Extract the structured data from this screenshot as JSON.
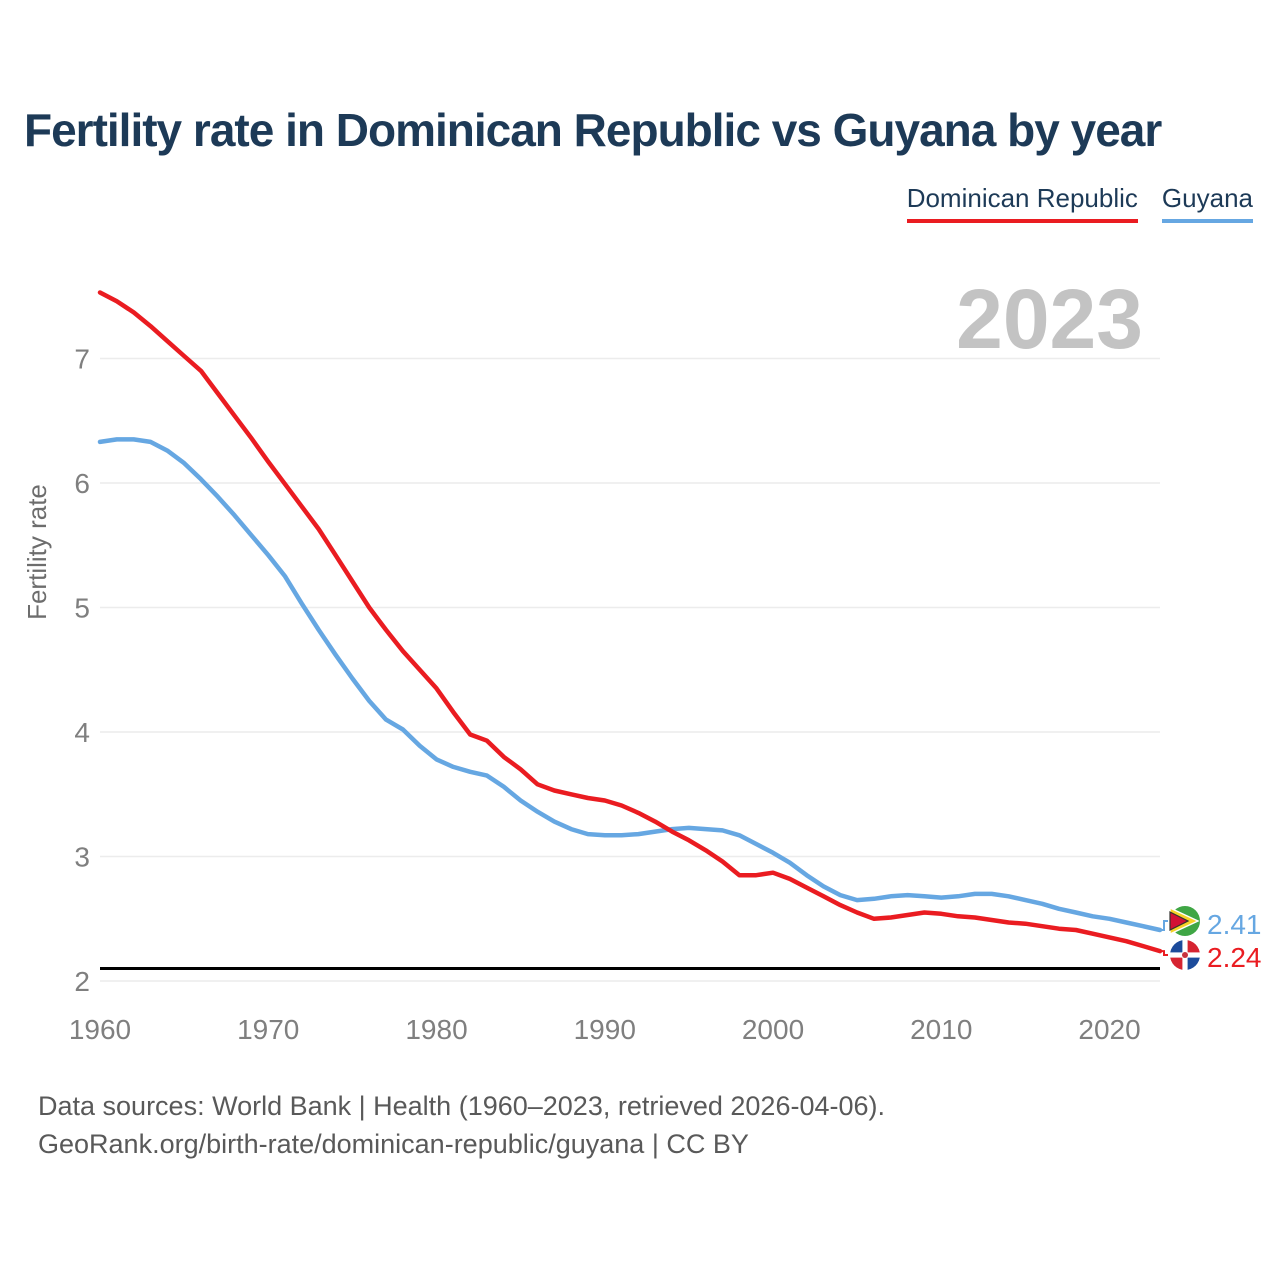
{
  "title": "Fertility rate in Dominican Republic vs Guyana by year",
  "watermark": "2023",
  "legend": [
    {
      "label": "Dominican Republic",
      "color": "#ea1c21"
    },
    {
      "label": "Guyana",
      "color": "#66a7e2"
    }
  ],
  "end_labels": [
    {
      "series": "Guyana",
      "value": "2.41",
      "color": "#66a7e2",
      "flag": "guyana-flag-icon"
    },
    {
      "series": "Dominican Republic",
      "value": "2.24",
      "color": "#ea1c21",
      "flag": "dominican-republic-flag-icon"
    }
  ],
  "footer": {
    "line1": "Data sources: World Bank | Health (1960–2023, retrieved 2026-04-06).",
    "line2": "GeoRank.org/birth-rate/dominican-republic/guyana | CC BY"
  },
  "chart_data": {
    "type": "line",
    "title": "Fertility rate in Dominican Republic vs Guyana by year",
    "xlabel": "",
    "ylabel": "Fertility rate",
    "grid": "horizontal",
    "legend_position": "top-right",
    "xlim": [
      1960,
      2023
    ],
    "ylim": [
      2,
      7.6
    ],
    "x_ticks": [
      1960,
      1970,
      1980,
      1990,
      2000,
      2010,
      2020
    ],
    "y_ticks": [
      2,
      3,
      4,
      5,
      6,
      7
    ],
    "reference_line": {
      "value": 2.1,
      "color": "#000000"
    },
    "x": [
      1960,
      1961,
      1962,
      1963,
      1964,
      1965,
      1966,
      1967,
      1968,
      1969,
      1970,
      1971,
      1972,
      1973,
      1974,
      1975,
      1976,
      1977,
      1978,
      1979,
      1980,
      1981,
      1982,
      1983,
      1984,
      1985,
      1986,
      1987,
      1988,
      1989,
      1990,
      1991,
      1992,
      1993,
      1994,
      1995,
      1996,
      1997,
      1998,
      1999,
      2000,
      2001,
      2002,
      2003,
      2004,
      2005,
      2006,
      2007,
      2008,
      2009,
      2010,
      2011,
      2012,
      2013,
      2014,
      2015,
      2016,
      2017,
      2018,
      2019,
      2020,
      2021,
      2022,
      2023
    ],
    "series": [
      {
        "name": "Dominican Republic",
        "color": "#ea1c21",
        "last_value": 2.24,
        "values": [
          7.53,
          7.46,
          7.37,
          7.26,
          7.14,
          7.02,
          6.9,
          6.72,
          6.54,
          6.36,
          6.17,
          5.99,
          5.81,
          5.63,
          5.42,
          5.21,
          5.0,
          4.82,
          4.65,
          4.5,
          4.35,
          4.16,
          3.98,
          3.93,
          3.8,
          3.7,
          3.58,
          3.53,
          3.5,
          3.47,
          3.45,
          3.41,
          3.35,
          3.28,
          3.2,
          3.13,
          3.05,
          2.96,
          2.85,
          2.85,
          2.87,
          2.82,
          2.75,
          2.68,
          2.61,
          2.55,
          2.5,
          2.51,
          2.53,
          2.55,
          2.54,
          2.52,
          2.51,
          2.49,
          2.47,
          2.46,
          2.44,
          2.42,
          2.41,
          2.38,
          2.35,
          2.32,
          2.28,
          2.24
        ]
      },
      {
        "name": "Guyana",
        "color": "#66a7e2",
        "last_value": 2.41,
        "values": [
          6.33,
          6.35,
          6.35,
          6.33,
          6.26,
          6.16,
          6.03,
          5.89,
          5.74,
          5.58,
          5.42,
          5.25,
          5.03,
          4.82,
          4.62,
          4.43,
          4.25,
          4.1,
          4.02,
          3.89,
          3.78,
          3.72,
          3.68,
          3.65,
          3.56,
          3.45,
          3.36,
          3.28,
          3.22,
          3.18,
          3.17,
          3.17,
          3.18,
          3.2,
          3.22,
          3.23,
          3.22,
          3.21,
          3.17,
          3.1,
          3.03,
          2.95,
          2.85,
          2.76,
          2.69,
          2.65,
          2.66,
          2.68,
          2.69,
          2.68,
          2.67,
          2.68,
          2.7,
          2.7,
          2.68,
          2.65,
          2.62,
          2.58,
          2.55,
          2.52,
          2.5,
          2.47,
          2.44,
          2.41
        ]
      }
    ]
  }
}
